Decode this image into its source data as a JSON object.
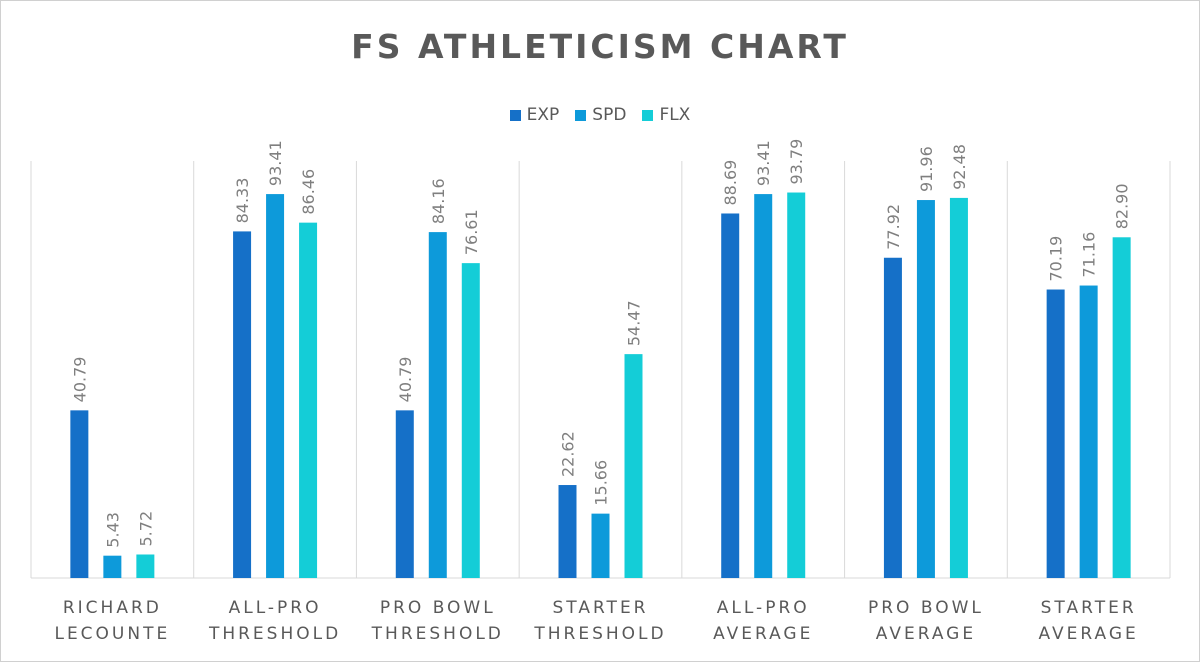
{
  "chart_data": {
    "type": "bar",
    "title": "FS ATHLETICISM CHART",
    "categories": [
      [
        "RICHARD",
        "LECOUNTE"
      ],
      [
        "ALL-PRO",
        "THRESHOLD"
      ],
      [
        "PRO BOWL",
        "THRESHOLD"
      ],
      [
        "STARTER",
        "THRESHOLD"
      ],
      [
        "ALL-PRO",
        "AVERAGE"
      ],
      [
        "PRO BOWL",
        "AVERAGE"
      ],
      [
        "STARTER",
        "AVERAGE"
      ]
    ],
    "series": [
      {
        "name": "EXP",
        "color": "#1570C8",
        "values": [
          40.79,
          84.33,
          40.79,
          22.62,
          88.69,
          77.92,
          70.19
        ],
        "labels": [
          "40.79",
          "84.33",
          "40.79",
          "22.62",
          "88.69",
          "77.92",
          "70.19"
        ]
      },
      {
        "name": "SPD",
        "color": "#0D9ADA",
        "values": [
          5.43,
          93.41,
          84.16,
          15.66,
          93.41,
          91.96,
          71.16
        ],
        "labels": [
          "5.43",
          "93.41",
          "84.16",
          "15.66",
          "93.41",
          "91.96",
          "71.16"
        ]
      },
      {
        "name": "FLX",
        "color": "#14CDD7",
        "values": [
          5.72,
          86.46,
          76.61,
          54.47,
          93.79,
          92.48,
          82.9
        ],
        "labels": [
          "5.72",
          "86.46",
          "76.61",
          "54.47",
          "93.79",
          "92.48",
          "82.90"
        ]
      }
    ],
    "ylim": [
      0,
      100
    ],
    "xlabel": "",
    "ylabel": "",
    "grid": false,
    "legend": "top-center"
  }
}
